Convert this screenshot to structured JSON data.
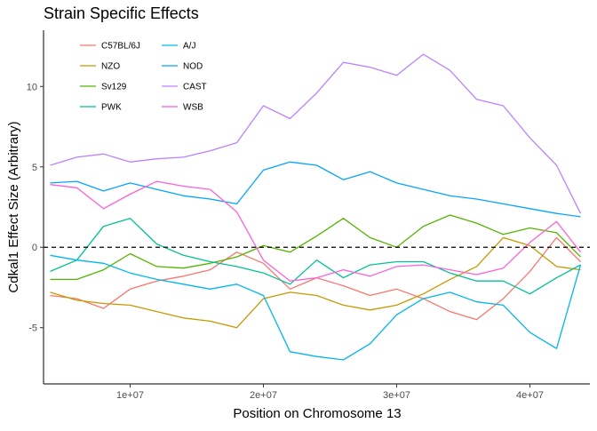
{
  "chart_data": {
    "type": "line",
    "title": "Strain Specific Effects",
    "xlabel": "Position on Chromosome 13",
    "ylabel": "Cdkal1 Effect Size (Arbitrary)",
    "xlim": [
      3500000,
      44500000
    ],
    "ylim": [
      -8.5,
      13.5
    ],
    "x_ticks": [
      10000000,
      20000000,
      30000000,
      40000000
    ],
    "x_tick_labels": [
      "1e+07",
      "2e+07",
      "3e+07",
      "4e+07"
    ],
    "y_ticks": [
      -5,
      0,
      5,
      10
    ],
    "y_tick_labels": [
      "-5",
      "0",
      "5",
      "10"
    ],
    "grid": false,
    "legend_position": "top-left",
    "reference_line": {
      "y": 0,
      "style": "dashed"
    },
    "series": [
      {
        "name": "C57BL/6J",
        "color": "#F8766D",
        "x": [
          4000000.0,
          6000000.0,
          8000000.0,
          10000000.0,
          12000000.0,
          14000000.0,
          16000000.0,
          18000000.0,
          20000000.0,
          22000000.0,
          24000000.0,
          26000000.0,
          28000000.0,
          30000000.0,
          32000000.0,
          34000000.0,
          36000000.0,
          38000000.0,
          40000000.0,
          42000000.0,
          43800000.0
        ],
        "y": [
          -3.0,
          -3.2,
          -3.8,
          -2.6,
          -2.1,
          -1.8,
          -1.4,
          -0.3,
          -1.0,
          -2.6,
          -1.9,
          -2.4,
          -3.0,
          -2.6,
          -3.2,
          -4.0,
          -4.5,
          -3.2,
          -1.5,
          0.6,
          -0.9
        ]
      },
      {
        "name": "NZO",
        "color": "#C49A00",
        "x": [
          4000000.0,
          6000000.0,
          8000000.0,
          10000000.0,
          12000000.0,
          14000000.0,
          16000000.0,
          18000000.0,
          20000000.0,
          22000000.0,
          24000000.0,
          26000000.0,
          28000000.0,
          30000000.0,
          32000000.0,
          34000000.0,
          36000000.0,
          38000000.0,
          40000000.0,
          42000000.0,
          43800000.0
        ],
        "y": [
          -2.8,
          -3.3,
          -3.5,
          -3.6,
          -4.0,
          -4.4,
          -4.6,
          -5.0,
          -3.2,
          -2.8,
          -3.0,
          -3.6,
          -3.9,
          -3.6,
          -2.9,
          -2.0,
          -1.2,
          0.6,
          0.1,
          -1.2,
          -1.4
        ]
      },
      {
        "name": "Sv129",
        "color": "#53B400",
        "x": [
          4000000.0,
          6000000.0,
          8000000.0,
          10000000.0,
          12000000.0,
          14000000.0,
          16000000.0,
          18000000.0,
          20000000.0,
          22000000.0,
          24000000.0,
          26000000.0,
          28000000.0,
          30000000.0,
          32000000.0,
          34000000.0,
          36000000.0,
          38000000.0,
          40000000.0,
          42000000.0,
          43800000.0
        ],
        "y": [
          -2.0,
          -2.0,
          -1.4,
          -0.4,
          -1.2,
          -1.3,
          -1.0,
          -0.6,
          0.1,
          -0.3,
          0.7,
          1.8,
          0.6,
          0.0,
          1.3,
          2.0,
          1.5,
          0.8,
          1.2,
          0.9,
          -0.6
        ]
      },
      {
        "name": "PWK",
        "color": "#00C094",
        "x": [
          4000000.0,
          6000000.0,
          8000000.0,
          10000000.0,
          12000000.0,
          14000000.0,
          16000000.0,
          18000000.0,
          20000000.0,
          22000000.0,
          24000000.0,
          26000000.0,
          28000000.0,
          30000000.0,
          32000000.0,
          34000000.0,
          36000000.0,
          38000000.0,
          40000000.0,
          42000000.0,
          43800000.0
        ],
        "y": [
          -1.5,
          -0.8,
          1.3,
          1.8,
          0.2,
          -0.5,
          -0.9,
          -1.2,
          -1.6,
          -2.3,
          -0.8,
          -1.9,
          -1.1,
          -0.9,
          -0.9,
          -1.6,
          -2.1,
          -2.1,
          -2.9,
          -1.9,
          -1.1
        ]
      },
      {
        "name": "A/J",
        "color": "#00B6EB",
        "x": [
          4000000.0,
          6000000.0,
          8000000.0,
          10000000.0,
          12000000.0,
          14000000.0,
          16000000.0,
          18000000.0,
          20000000.0,
          22000000.0,
          24000000.0,
          26000000.0,
          28000000.0,
          30000000.0,
          32000000.0,
          34000000.0,
          36000000.0,
          38000000.0,
          40000000.0,
          42000000.0,
          43800000.0
        ],
        "y": [
          -0.5,
          -0.8,
          -1.0,
          -1.6,
          -2.0,
          -2.3,
          -2.6,
          -2.3,
          -3.0,
          -6.5,
          -6.8,
          -7.0,
          -6.0,
          -4.2,
          -3.2,
          -2.8,
          -3.4,
          -3.6,
          -5.3,
          -6.3,
          -1.1
        ]
      },
      {
        "name": "NOD",
        "color": "#06A4FF",
        "x": [
          4000000.0,
          6000000.0,
          8000000.0,
          10000000.0,
          12000000.0,
          14000000.0,
          16000000.0,
          18000000.0,
          20000000.0,
          22000000.0,
          24000000.0,
          26000000.0,
          28000000.0,
          30000000.0,
          32000000.0,
          34000000.0,
          36000000.0,
          38000000.0,
          40000000.0,
          42000000.0,
          43800000.0
        ],
        "y": [
          4.0,
          4.1,
          3.5,
          4.0,
          3.6,
          3.2,
          3.0,
          2.7,
          4.8,
          5.3,
          5.1,
          4.2,
          4.7,
          4.0,
          3.6,
          3.2,
          3.0,
          2.7,
          2.4,
          2.1,
          1.9
        ]
      },
      {
        "name": "CAST",
        "color": "#B983FF",
        "x": [
          4000000.0,
          6000000.0,
          8000000.0,
          10000000.0,
          12000000.0,
          14000000.0,
          16000000.0,
          18000000.0,
          20000000.0,
          22000000.0,
          24000000.0,
          26000000.0,
          28000000.0,
          30000000.0,
          32000000.0,
          34000000.0,
          36000000.0,
          38000000.0,
          40000000.0,
          42000000.0,
          43800000.0
        ],
        "y": [
          5.1,
          5.6,
          5.8,
          5.3,
          5.5,
          5.6,
          6.0,
          6.5,
          8.8,
          8.0,
          9.6,
          11.5,
          11.2,
          10.7,
          12.0,
          11.0,
          9.2,
          8.8,
          6.8,
          5.1,
          2.1
        ]
      },
      {
        "name": "WSB",
        "color": "#FB61D7",
        "x": [
          4000000.0,
          6000000.0,
          8000000.0,
          10000000.0,
          12000000.0,
          14000000.0,
          16000000.0,
          18000000.0,
          20000000.0,
          22000000.0,
          24000000.0,
          26000000.0,
          28000000.0,
          30000000.0,
          32000000.0,
          34000000.0,
          36000000.0,
          38000000.0,
          40000000.0,
          42000000.0,
          43800000.0
        ],
        "y": [
          3.9,
          3.7,
          2.4,
          3.3,
          4.1,
          3.8,
          3.6,
          2.2,
          -0.8,
          -2.1,
          -1.9,
          -1.4,
          -1.8,
          -1.2,
          -1.1,
          -1.4,
          -1.7,
          -1.3,
          0.3,
          1.6,
          -0.3
        ]
      }
    ]
  }
}
